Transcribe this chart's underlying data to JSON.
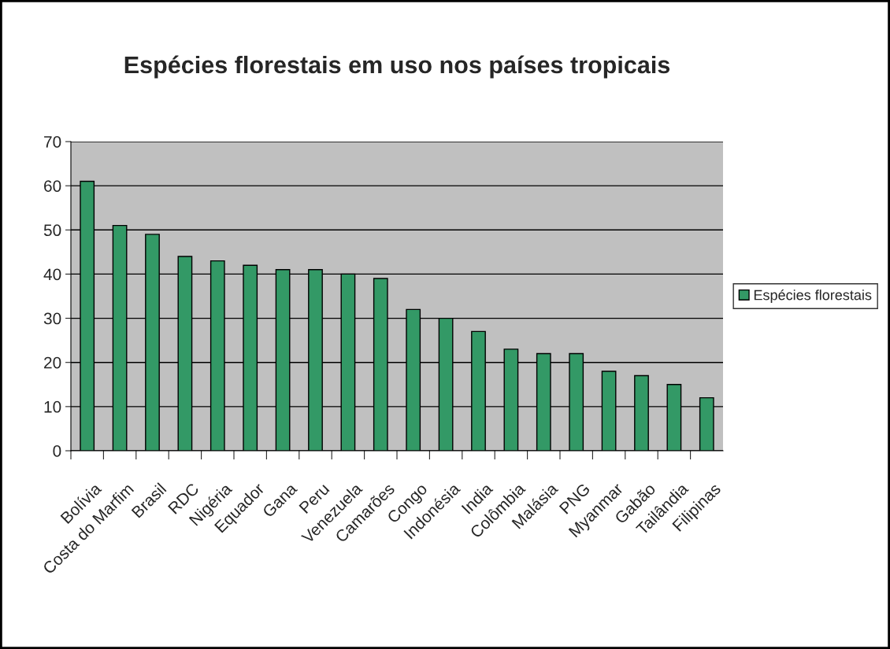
{
  "chart_data": {
    "type": "bar",
    "title": "Espécies florestais em uso nos países tropicais",
    "categories": [
      "Bolívia",
      "Costa do Marfim",
      "Brasil",
      "RDC",
      "Nigéria",
      "Equador",
      "Gana",
      "Peru",
      "Venezuela",
      "Camarões",
      "Congo",
      "Indonésia",
      "India",
      "Colômbia",
      "Malásia",
      "PNG",
      "Myanmar",
      "Gabão",
      "Tailândia",
      "Filipinas"
    ],
    "series": [
      {
        "name": "Espécies florestais",
        "color": "#339966",
        "values": [
          61,
          51,
          49,
          44,
          43,
          42,
          41,
          41,
          40,
          39,
          32,
          30,
          27,
          23,
          22,
          22,
          18,
          17,
          15,
          12
        ]
      }
    ],
    "ylim": [
      0,
      70
    ],
    "yticks": [
      0,
      10,
      20,
      30,
      40,
      50,
      60,
      70
    ],
    "grid": "y",
    "legend": "right"
  }
}
